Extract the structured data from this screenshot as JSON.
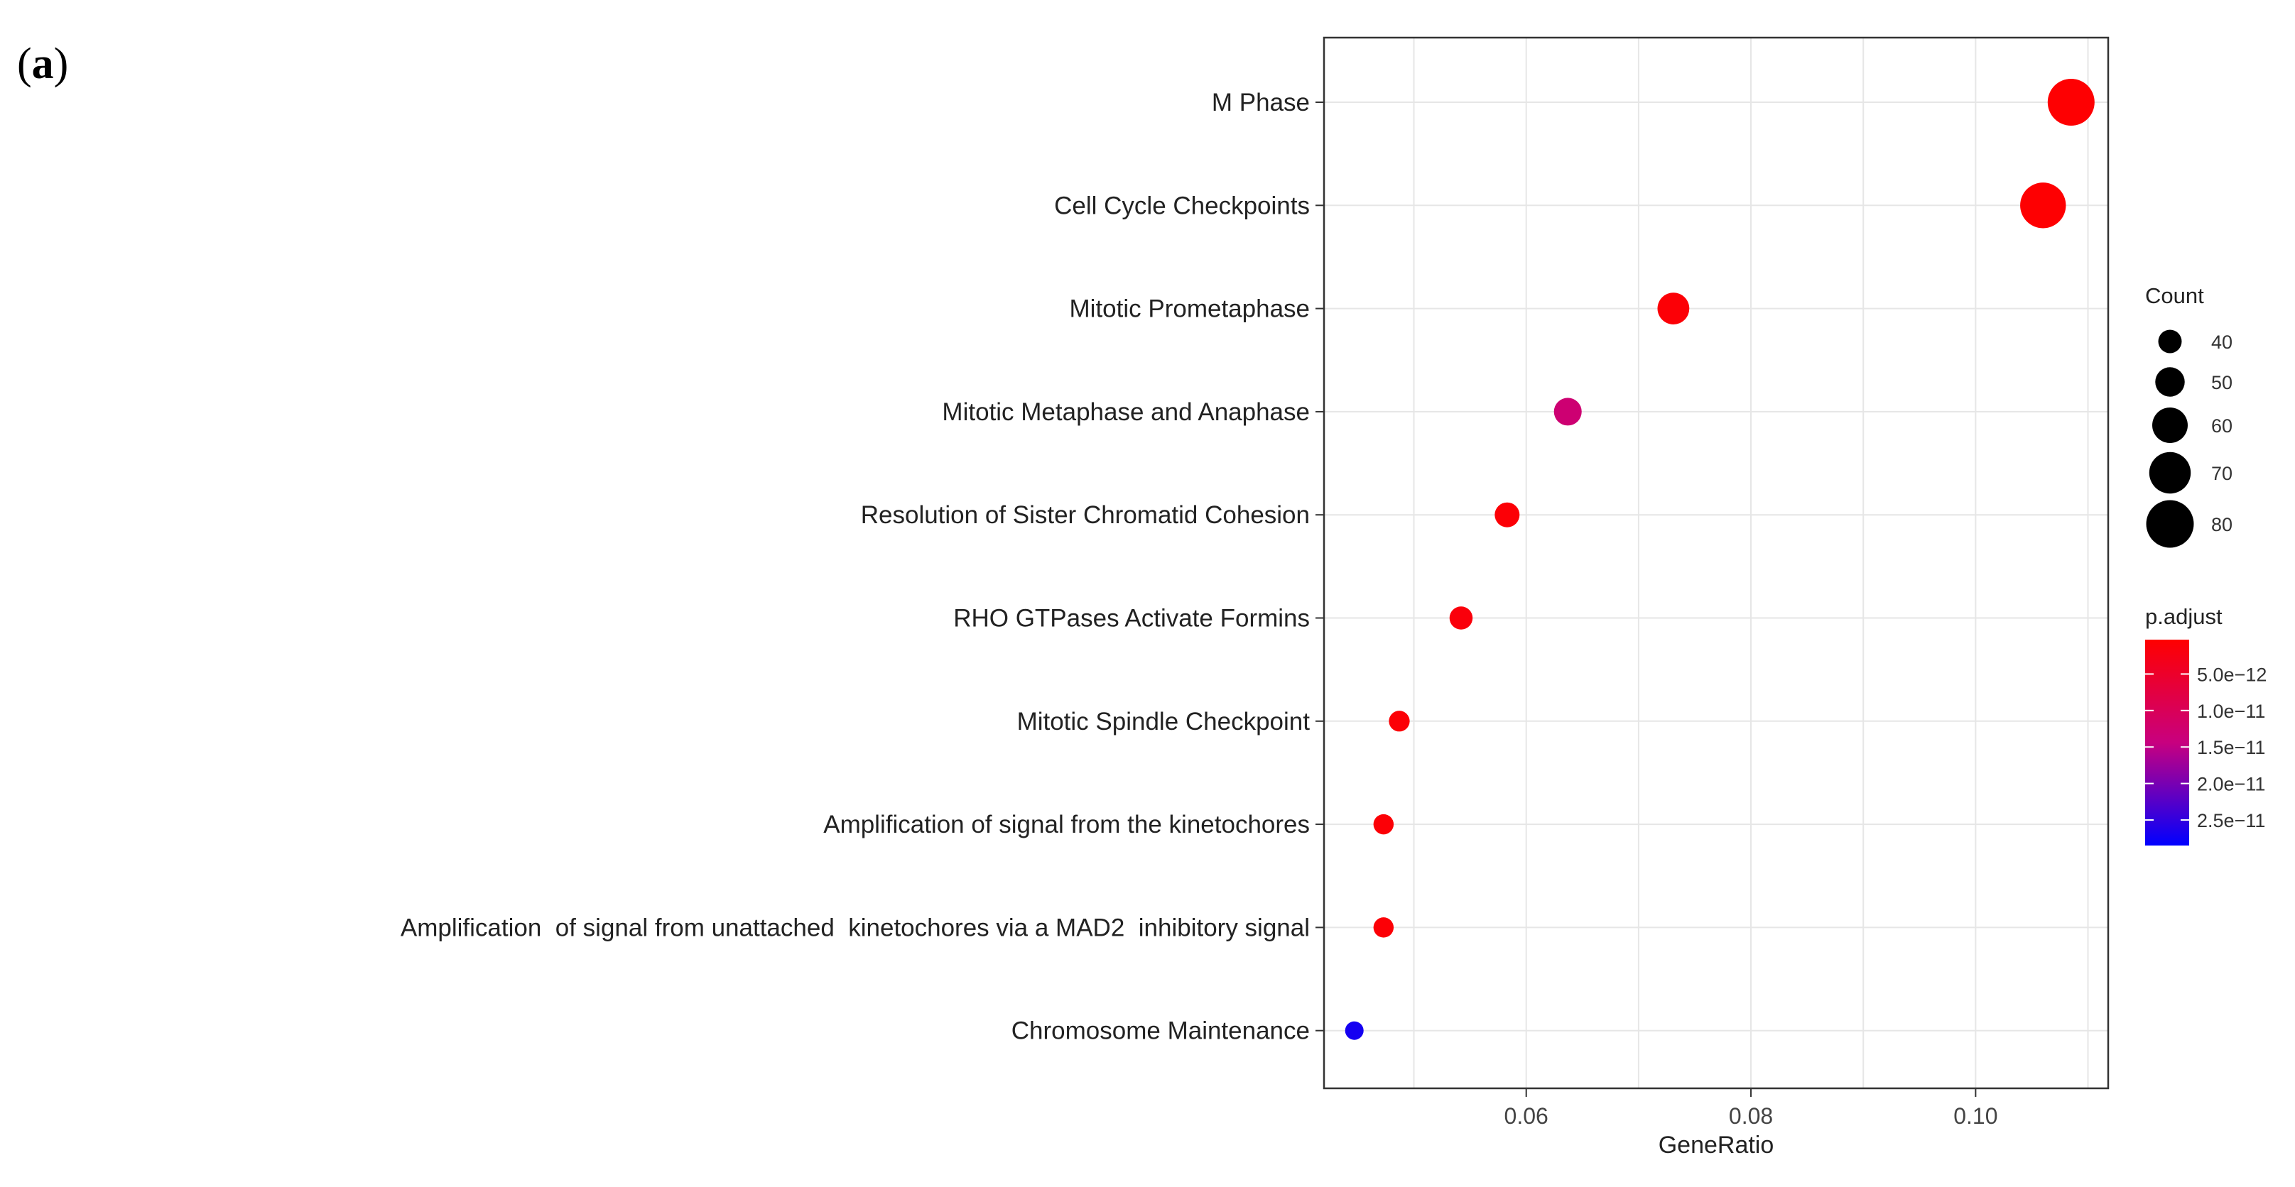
{
  "panel_label": {
    "open": "(",
    "letter": "a",
    "close": ")"
  },
  "chart_data": {
    "type": "scatter",
    "xlabel": "GeneRatio",
    "ylabel": "",
    "xlim": [
      0.042,
      0.1118
    ],
    "xticks": [
      0.06,
      0.08,
      0.1
    ],
    "xtick_labels": [
      "0.06",
      "0.08",
      "0.10"
    ],
    "xminor": [
      0.05,
      0.07,
      0.09,
      0.11
    ],
    "grid": true,
    "categories": [
      "M Phase",
      "Cell Cycle Checkpoints",
      "Mitotic Prometaphase",
      "Mitotic Metaphase and Anaphase",
      "Resolution of Sister Chromatid Cohesion",
      "RHO GTPases Activate Formins",
      "Mitotic Spindle Checkpoint",
      "Amplification of signal from the kinetochores",
      "Amplification  of signal from unattached  kinetochores via a MAD2  inhibitory signal",
      "Chromosome Maintenance"
    ],
    "points": [
      {
        "term": "M Phase",
        "gene_ratio": 0.1085,
        "count": 82,
        "p_adjust": 5e-13
      },
      {
        "term": "Cell Cycle Checkpoints",
        "gene_ratio": 0.106,
        "count": 80,
        "p_adjust": 5e-13
      },
      {
        "term": "Mitotic Prometaphase",
        "gene_ratio": 0.0731,
        "count": 56,
        "p_adjust": 1e-12
      },
      {
        "term": "Mitotic Metaphase and Anaphase",
        "gene_ratio": 0.0637,
        "count": 49,
        "p_adjust": 1.3e-11
      },
      {
        "term": "Resolution of Sister Chromatid Cohesion",
        "gene_ratio": 0.0583,
        "count": 44,
        "p_adjust": 1e-12
      },
      {
        "term": "RHO GTPases Activate Formins",
        "gene_ratio": 0.0542,
        "count": 41,
        "p_adjust": 1.5e-12
      },
      {
        "term": "Mitotic Spindle Checkpoint",
        "gene_ratio": 0.0487,
        "count": 37,
        "p_adjust": 1e-12
      },
      {
        "term": "Amplification of signal from the kinetochores",
        "gene_ratio": 0.0473,
        "count": 36,
        "p_adjust": 1e-12
      },
      {
        "term": "Amplification  of signal from unattached  kinetochores via a MAD2  inhibitory signal",
        "gene_ratio": 0.0473,
        "count": 36,
        "p_adjust": 1e-12
      },
      {
        "term": "Chromosome Maintenance",
        "gene_ratio": 0.0447,
        "count": 33,
        "p_adjust": 2.7e-11
      }
    ],
    "legend_size": {
      "title": "Count",
      "values": [
        40,
        50,
        60,
        70,
        80
      ],
      "labels": [
        "40",
        "50",
        "60",
        "70",
        "80"
      ]
    },
    "legend_color": {
      "title": "p.adjust",
      "range": [
        2.9e-13,
        2.85e-11
      ],
      "breaks": [
        5e-12,
        1e-11,
        1.5e-11,
        2e-11,
        2.5e-11
      ],
      "labels": [
        "5.0e−12",
        "1.0e−11",
        "1.5e−11",
        "2.0e−11",
        "2.5e−11"
      ],
      "low_color": "#ff0000",
      "high_color": "#0000ff"
    }
  }
}
